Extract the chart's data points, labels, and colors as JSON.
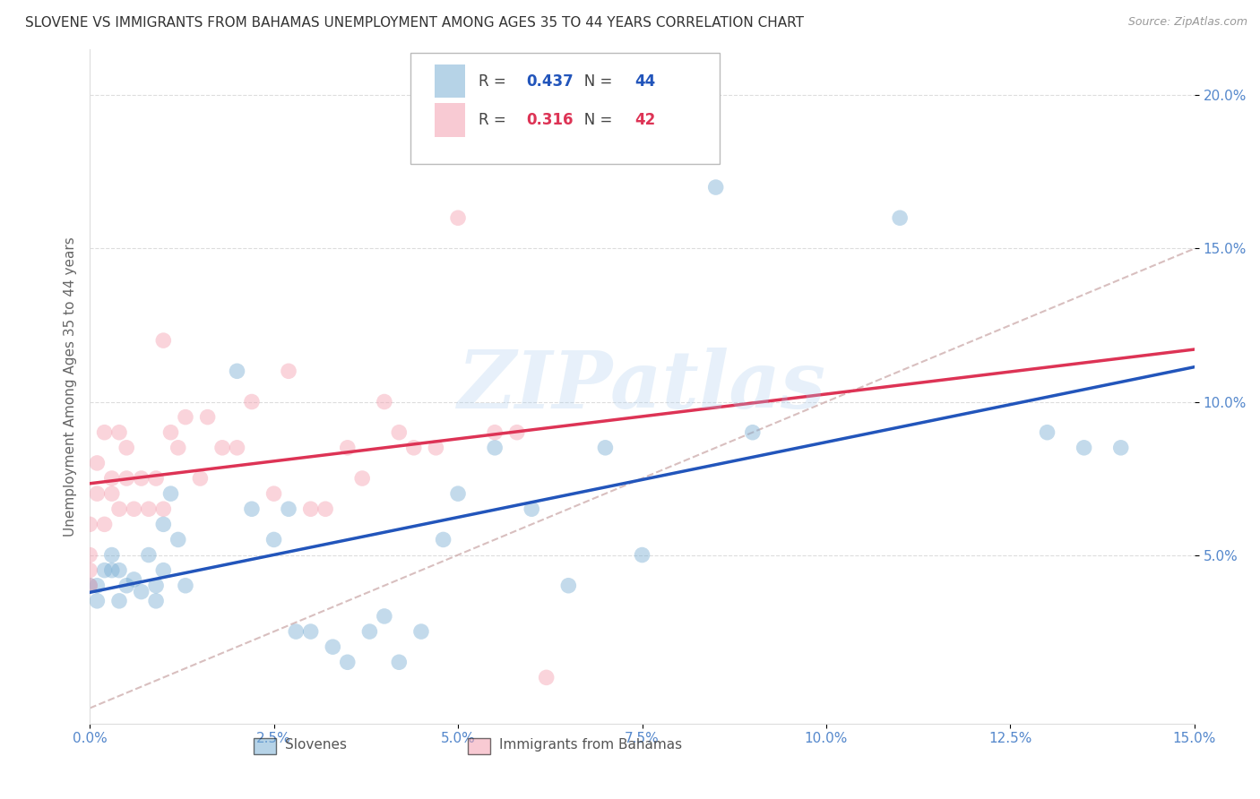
{
  "title": "SLOVENE VS IMMIGRANTS FROM BAHAMAS UNEMPLOYMENT AMONG AGES 35 TO 44 YEARS CORRELATION CHART",
  "source": "Source: ZipAtlas.com",
  "ylabel": "Unemployment Among Ages 35 to 44 years",
  "watermark": "ZIPatlas",
  "series1_label": "Slovenes",
  "series2_label": "Immigrants from Bahamas",
  "series1_color": "#7aafd4",
  "series2_color": "#f4a0b0",
  "series1_R": "0.437",
  "series1_N": "44",
  "series2_R": "0.316",
  "series2_N": "42",
  "trend1_color": "#2255bb",
  "trend2_color": "#dd3355",
  "refline_color": "#ccaaaa",
  "xlim": [
    0.0,
    0.15
  ],
  "ylim": [
    -0.005,
    0.215
  ],
  "xticks": [
    0.0,
    0.025,
    0.05,
    0.075,
    0.1,
    0.125,
    0.15
  ],
  "xticklabels": [
    "0.0%",
    "2.5%",
    "5.0%",
    "7.5%",
    "10.0%",
    "12.5%",
    "15.0%"
  ],
  "yticks": [
    0.05,
    0.1,
    0.15,
    0.2
  ],
  "yticklabels": [
    "5.0%",
    "10.0%",
    "15.0%",
    "20.0%"
  ],
  "tick_color": "#5588cc",
  "grid_color": "#dddddd",
  "background_color": "#ffffff",
  "slovenes_x": [
    0.0,
    0.001,
    0.001,
    0.002,
    0.003,
    0.003,
    0.004,
    0.004,
    0.005,
    0.006,
    0.007,
    0.008,
    0.009,
    0.009,
    0.01,
    0.01,
    0.011,
    0.012,
    0.013,
    0.02,
    0.022,
    0.025,
    0.027,
    0.028,
    0.03,
    0.033,
    0.035,
    0.038,
    0.04,
    0.042,
    0.045,
    0.048,
    0.05,
    0.055,
    0.06,
    0.065,
    0.07,
    0.075,
    0.085,
    0.09,
    0.11,
    0.13,
    0.135,
    0.14
  ],
  "slovenes_y": [
    0.04,
    0.035,
    0.04,
    0.045,
    0.05,
    0.045,
    0.035,
    0.045,
    0.04,
    0.042,
    0.038,
    0.05,
    0.04,
    0.035,
    0.06,
    0.045,
    0.07,
    0.055,
    0.04,
    0.11,
    0.065,
    0.055,
    0.065,
    0.025,
    0.025,
    0.02,
    0.015,
    0.025,
    0.03,
    0.015,
    0.025,
    0.055,
    0.07,
    0.085,
    0.065,
    0.04,
    0.085,
    0.05,
    0.17,
    0.09,
    0.16,
    0.09,
    0.085,
    0.085
  ],
  "bahamas_x": [
    0.0,
    0.0,
    0.0,
    0.0,
    0.001,
    0.001,
    0.002,
    0.002,
    0.003,
    0.003,
    0.004,
    0.004,
    0.005,
    0.005,
    0.006,
    0.007,
    0.008,
    0.009,
    0.01,
    0.01,
    0.011,
    0.012,
    0.013,
    0.015,
    0.016,
    0.018,
    0.02,
    0.022,
    0.025,
    0.027,
    0.03,
    0.032,
    0.035,
    0.037,
    0.04,
    0.042,
    0.044,
    0.047,
    0.05,
    0.055,
    0.058,
    0.062
  ],
  "bahamas_y": [
    0.04,
    0.05,
    0.06,
    0.045,
    0.07,
    0.08,
    0.09,
    0.06,
    0.075,
    0.07,
    0.09,
    0.065,
    0.075,
    0.085,
    0.065,
    0.075,
    0.065,
    0.075,
    0.12,
    0.065,
    0.09,
    0.085,
    0.095,
    0.075,
    0.095,
    0.085,
    0.085,
    0.1,
    0.07,
    0.11,
    0.065,
    0.065,
    0.085,
    0.075,
    0.1,
    0.09,
    0.085,
    0.085,
    0.16,
    0.09,
    0.09,
    0.01
  ]
}
